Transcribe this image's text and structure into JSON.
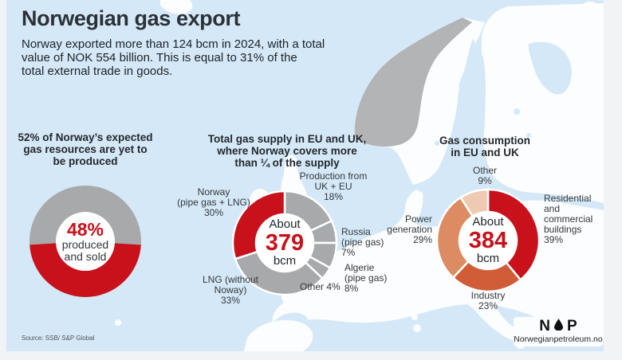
{
  "header": {
    "title": "Norwegian gas export",
    "subtitle_lines": [
      "Norway exported more than 124 bcm in 2024, with a total",
      "value of NOK 554 billion. This is equal to 31% of the",
      "total external trade in goods."
    ]
  },
  "footer": {
    "source": "Source: SSB/ S&P Global",
    "logo": {
      "letter_left": "N",
      "letter_right": "P",
      "icon": "oil-drop-icon",
      "url": "Norwegianpetroleum.no"
    }
  },
  "colors": {
    "sea": "#d5e8f7",
    "land": "#fbfdfe",
    "norway_map": "#b2b4b5",
    "slice_gray": "#a7a9ab",
    "brand_red": "#c8111a",
    "industry_orange": "#d05c38",
    "power_salmon": "#dd8b62",
    "other_peach": "#efcab2"
  },
  "chart_data": [
    {
      "type": "donut",
      "title": "52% of Norway's expected gas resources are yet to be produced",
      "title_lines": [
        "52% of Norway’s expected",
        "gas resources are yet to",
        "be produced"
      ],
      "center": {
        "value": "48%",
        "caption_lines": [
          "produced",
          "and sold"
        ]
      },
      "slices": [
        {
          "label": "yet to be produced",
          "value": 52,
          "color": "#a7a9ab"
        },
        {
          "label": "produced and sold",
          "value": 48,
          "color": "#c8111a"
        }
      ],
      "render": {
        "size": 150,
        "outer_r": 70,
        "inner_r": 37,
        "start_deg": -93.6,
        "stroke": 0
      }
    },
    {
      "type": "donut",
      "title": "Total gas supply in EU and UK, where Norway covers more than ¼ of the supply",
      "title_lines": [
        "Total gas supply in EU and UK,",
        "where Norway covers more",
        "than ¼ of the supply"
      ],
      "center": {
        "pre": "About",
        "value": "379",
        "unit": "bcm"
      },
      "slices": [
        {
          "label": "Production from UK + EU",
          "value": 18,
          "color": "#a7a9ab"
        },
        {
          "label": "Russia (pipe gas)",
          "value": 7,
          "color": "#a7a9ab"
        },
        {
          "label": "Algerie (pipe gas)",
          "value": 8,
          "color": "#a7a9ab"
        },
        {
          "label": "Other",
          "value": 4,
          "color": "#a7a9ab"
        },
        {
          "label": "LNG (without Noway)",
          "value": 33,
          "color": "#a7a9ab"
        },
        {
          "label": "Norway (pipe gas + LNG)",
          "value": 30,
          "color": "#c8111a"
        }
      ],
      "labels": {
        "norway": [
          "Norway",
          "(pipe gas + LNG)",
          "30%"
        ],
        "production": [
          "Production from",
          "UK + EU",
          "18%"
        ],
        "russia": [
          "Russia",
          "(pipe gas)",
          "7%"
        ],
        "algerie": [
          "Algerie",
          "(pipe gas)",
          "8%"
        ],
        "other": [
          "Other 4%"
        ],
        "lng": [
          "LNG (without",
          "Noway)",
          "33%"
        ]
      },
      "render": {
        "size": 150,
        "outer_r": 65,
        "inner_r": 36,
        "start_deg": 0,
        "stroke": 2.5
      }
    },
    {
      "type": "donut",
      "title": "Gas consumption in EU and UK",
      "title_lines": [
        "Gas consumption",
        "in EU and UK"
      ],
      "center": {
        "pre": "About",
        "value": "384",
        "unit": "bcm"
      },
      "slices": [
        {
          "label": "Residential and commercial buildings",
          "value": 39,
          "color": "#c8111a"
        },
        {
          "label": "Industry",
          "value": 23,
          "color": "#d05c38"
        },
        {
          "label": "Power generation",
          "value": 29,
          "color": "#dd8b62"
        },
        {
          "label": "Other",
          "value": 9,
          "color": "#efcab2"
        }
      ],
      "labels": {
        "other": [
          "Other",
          "9%"
        ],
        "residential": [
          "Residential and",
          "commercial",
          "buildings",
          "39%"
        ],
        "power": [
          "Power",
          "generation",
          "29%"
        ],
        "industry": [
          "Industry",
          "23%"
        ]
      },
      "render": {
        "size": 150,
        "outer_r": 64,
        "inner_r": 36,
        "start_deg": 0,
        "stroke": 2.5
      }
    }
  ]
}
